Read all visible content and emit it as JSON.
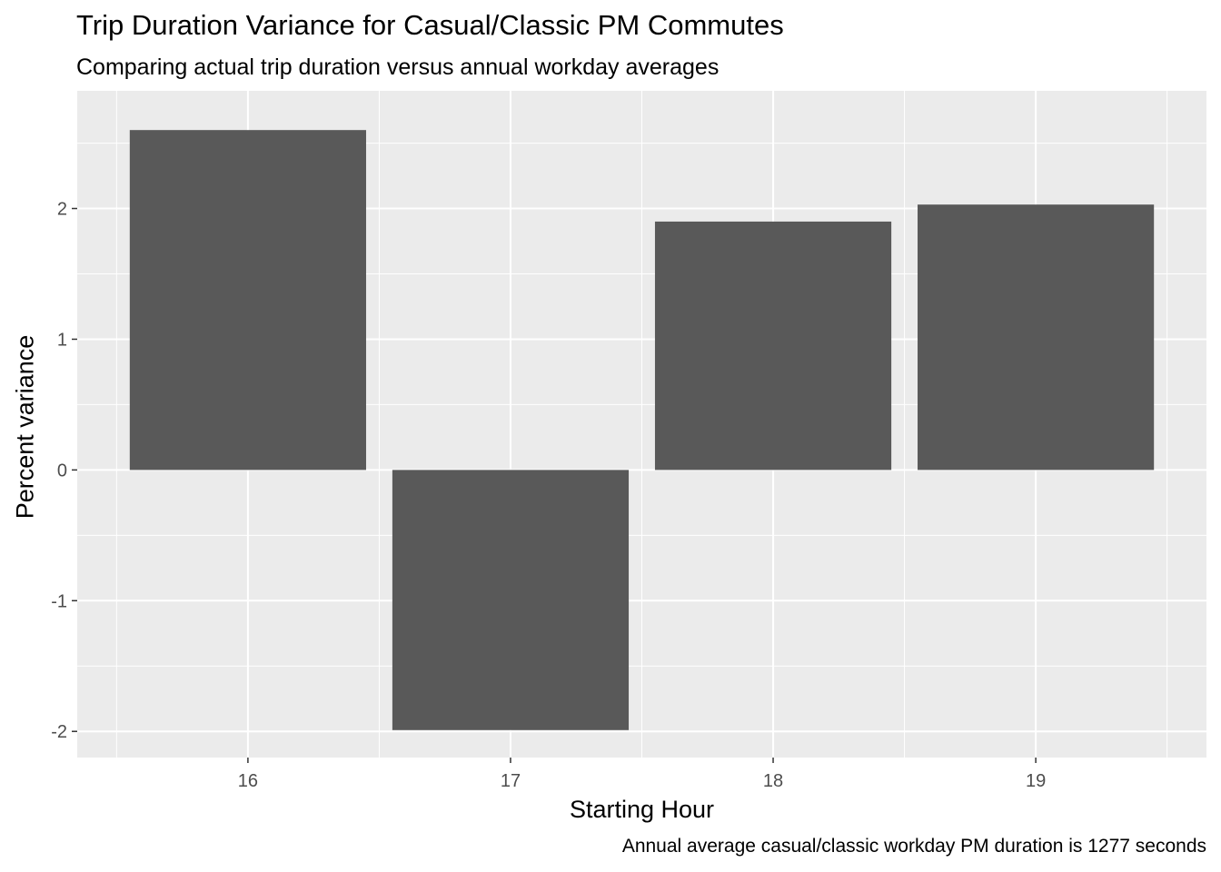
{
  "chart_data": {
    "type": "bar",
    "title": "Trip Duration Variance for Casual/Classic PM Commutes",
    "subtitle": "Comparing actual trip duration versus annual workday averages",
    "xlabel": "Starting Hour",
    "ylabel": "Percent variance",
    "caption": "Annual average casual/classic workday PM duration is 1277 seconds",
    "categories": [
      "16",
      "17",
      "18",
      "19"
    ],
    "values": [
      2.6,
      -1.99,
      1.9,
      2.03
    ],
    "ylim": [
      -2.2,
      2.9
    ],
    "yticks": [
      -2,
      -1,
      0,
      1,
      2
    ],
    "ytick_labels": [
      "-2",
      "-1",
      "0",
      "1",
      "2"
    ],
    "grid": true,
    "colors": {
      "bar": "#595959",
      "panel": "#ebebeb",
      "grid": "#ffffff"
    }
  }
}
